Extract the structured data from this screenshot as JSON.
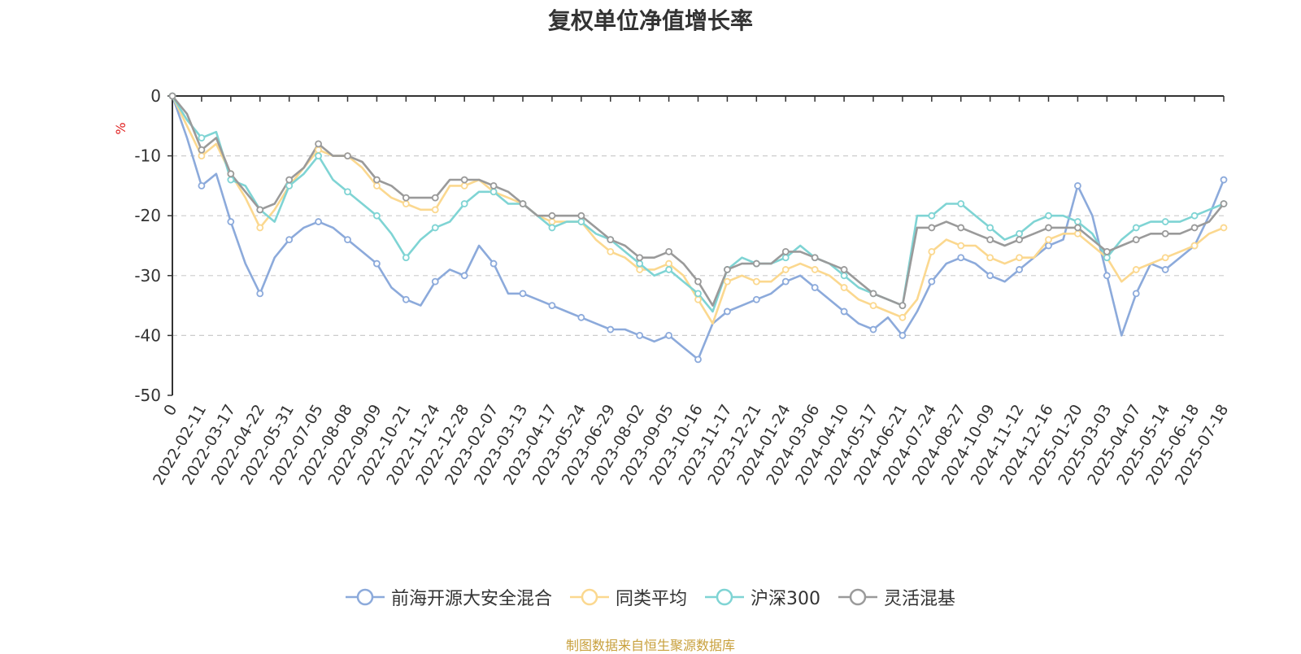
{
  "chart_data": {
    "type": "line",
    "title": "复权单位净值增长率",
    "ylabel": "%",
    "ylim": [
      -50,
      0
    ],
    "yticks": [
      0,
      -10,
      -20,
      -30,
      -40,
      -50
    ],
    "grid": true,
    "legend_position": "bottom",
    "x_tick_labels": [
      "0",
      "2022-02-11",
      "2022-03-17",
      "2022-04-22",
      "2022-05-31",
      "2022-07-05",
      "2022-08-08",
      "2022-09-09",
      "2022-10-21",
      "2022-11-24",
      "2022-12-28",
      "2023-02-07",
      "2023-03-13",
      "2023-04-17",
      "2023-05-24",
      "2023-06-29",
      "2023-08-02",
      "2023-09-05",
      "2023-10-16",
      "2023-11-17",
      "2023-12-21",
      "2024-01-24",
      "2024-03-06",
      "2024-04-10",
      "2024-05-17",
      "2024-06-21",
      "2024-07-24",
      "2024-08-27",
      "2024-10-09",
      "2024-11-12",
      "2024-12-16",
      "2025-01-20",
      "2025-03-03",
      "2025-04-07",
      "2025-05-14",
      "2025-06-18",
      "2025-07-18"
    ],
    "x": [
      0,
      0.5,
      1,
      1.5,
      2,
      2.5,
      3,
      3.5,
      4,
      4.5,
      5,
      5.5,
      6,
      6.5,
      7,
      7.5,
      8,
      8.5,
      9,
      9.5,
      10,
      10.5,
      11,
      11.5,
      12,
      12.5,
      13,
      13.5,
      14,
      14.5,
      15,
      15.5,
      16,
      16.5,
      17,
      17.5,
      18,
      18.5,
      19,
      19.5,
      20,
      20.5,
      21,
      21.5,
      22,
      22.5,
      23,
      23.5,
      24,
      24.5,
      25,
      25.5,
      26,
      26.5,
      27,
      27.5,
      28,
      28.5,
      29,
      29.5,
      30,
      30.5,
      31,
      31.5,
      32,
      32.5,
      33,
      33.5,
      34,
      34.5,
      35,
      35.5,
      36
    ],
    "series": [
      {
        "name": "前海开源大安全混合",
        "color": "#8caadb",
        "values": [
          0,
          -7,
          -15,
          -13,
          -21,
          -28,
          -33,
          -27,
          -24,
          -22,
          -21,
          -22,
          -24,
          -26,
          -28,
          -32,
          -34,
          -35,
          -31,
          -29,
          -30,
          -25,
          -28,
          -33,
          -33,
          -34,
          -35,
          -36,
          -37,
          -38,
          -39,
          -39,
          -40,
          -41,
          -40,
          -42,
          -44,
          -38,
          -36,
          -35,
          -34,
          -33,
          -31,
          -30,
          -32,
          -34,
          -36,
          -38,
          -39,
          -37,
          -40,
          -36,
          -31,
          -28,
          -27,
          -28,
          -30,
          -31,
          -29,
          -27,
          -25,
          -24,
          -15,
          -20,
          -30,
          -40,
          -33,
          -28,
          -29,
          -27,
          -25,
          -20,
          -14
        ]
      },
      {
        "name": "同类平均",
        "color": "#fbd88f",
        "values": [
          0,
          -5,
          -10,
          -8,
          -13,
          -17,
          -22,
          -19,
          -15,
          -12,
          -9,
          -10,
          -10,
          -12,
          -15,
          -17,
          -18,
          -19,
          -19,
          -15,
          -15,
          -14,
          -16,
          -17,
          -18,
          -20,
          -21,
          -21,
          -21,
          -24,
          -26,
          -27,
          -29,
          -29,
          -28,
          -30,
          -34,
          -38,
          -31,
          -30,
          -31,
          -31,
          -29,
          -28,
          -29,
          -30,
          -32,
          -34,
          -35,
          -36,
          -37,
          -34,
          -26,
          -24,
          -25,
          -25,
          -27,
          -28,
          -27,
          -27,
          -24,
          -23,
          -23,
          -25,
          -27,
          -31,
          -29,
          -28,
          -27,
          -26,
          -25,
          -23,
          -22
        ]
      },
      {
        "name": "沪深300",
        "color": "#7fd4d4",
        "values": [
          0,
          -4,
          -7,
          -6,
          -14,
          -15,
          -19,
          -21,
          -15,
          -13,
          -10,
          -14,
          -16,
          -18,
          -20,
          -23,
          -27,
          -24,
          -22,
          -21,
          -18,
          -16,
          -16,
          -18,
          -18,
          -20,
          -22,
          -21,
          -21,
          -23,
          -24,
          -26,
          -28,
          -30,
          -29,
          -31,
          -33,
          -36,
          -29,
          -27,
          -28,
          -28,
          -27,
          -25,
          -27,
          -28,
          -30,
          -32,
          -33,
          -34,
          -35,
          -20,
          -20,
          -18,
          -18,
          -20,
          -22,
          -24,
          -23,
          -21,
          -20,
          -20,
          -21,
          -23,
          -27,
          -24,
          -22,
          -21,
          -21,
          -21,
          -20,
          -19,
          -18
        ]
      },
      {
        "name": "灵活混基",
        "color": "#9a9a9a",
        "values": [
          0,
          -3,
          -9,
          -7,
          -13,
          -16,
          -19,
          -18,
          -14,
          -12,
          -8,
          -10,
          -10,
          -11,
          -14,
          -15,
          -17,
          -17,
          -17,
          -14,
          -14,
          -14,
          -15,
          -16,
          -18,
          -20,
          -20,
          -20,
          -20,
          -22,
          -24,
          -25,
          -27,
          -27,
          -26,
          -28,
          -31,
          -35,
          -29,
          -28,
          -28,
          -28,
          -26,
          -26,
          -27,
          -28,
          -29,
          -31,
          -33,
          -34,
          -35,
          -22,
          -22,
          -21,
          -22,
          -23,
          -24,
          -25,
          -24,
          -23,
          -22,
          -22,
          -22,
          -24,
          -26,
          -25,
          -24,
          -23,
          -23,
          -23,
          -22,
          -21,
          -18
        ]
      }
    ],
    "source_note": "制图数据来自恒生聚源数据库"
  }
}
